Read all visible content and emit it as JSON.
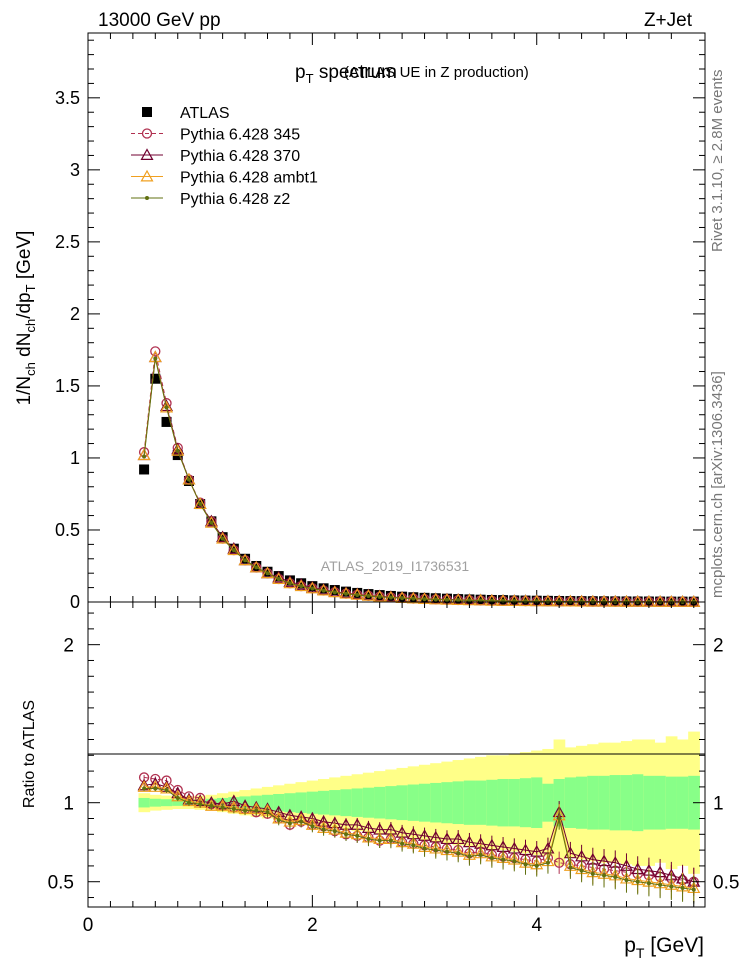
{
  "header": {
    "left": "13000 GeV pp",
    "right": "Z+Jet"
  },
  "side_labels": {
    "rivet": "Rivet 3.1.10, ≥ 2.8M events",
    "mcplots": "mcplots.cern.ch [arXiv:1306.3436]"
  },
  "chart_data": [
    {
      "type": "scatter",
      "title": "p_T spectrum",
      "title_main": "p",
      "title_sub": "T",
      "title_rest": " spectrum",
      "subtitle": "(ATLAS UE in Z production)",
      "ylabel": "1/N_ch dN_ch/dp_T [GeV]",
      "watermark": "ATLAS_2019_I1736531",
      "xlim": [
        0,
        5.5
      ],
      "ylim": [
        0,
        3.95
      ],
      "yticks": [
        "0",
        "0.5",
        "1",
        "1.5",
        "2",
        "2.5",
        "3",
        "3.5"
      ],
      "x": [
        0.5,
        0.6,
        0.7,
        0.8,
        0.9,
        1.0,
        1.1,
        1.2,
        1.3,
        1.4,
        1.5,
        1.6,
        1.7,
        1.8,
        1.9,
        2.0,
        2.1,
        2.2,
        2.3,
        2.4,
        2.5,
        2.6,
        2.7,
        2.8,
        2.9,
        3.0,
        3.1,
        3.2,
        3.3,
        3.4,
        3.5,
        3.6,
        3.7,
        3.8,
        3.9,
        4.0,
        4.1,
        4.2,
        4.3,
        4.4,
        4.5,
        4.6,
        4.7,
        4.8,
        4.9,
        5.0,
        5.1,
        5.2,
        5.3,
        5.4
      ],
      "series": [
        {
          "name": "ATLAS",
          "color": "#000000",
          "marker": "square",
          "line": "none",
          "values": [
            0.92,
            1.55,
            1.25,
            1.02,
            0.84,
            0.68,
            0.56,
            0.45,
            0.37,
            0.3,
            0.25,
            0.21,
            0.18,
            0.15,
            0.13,
            0.11,
            0.095,
            0.083,
            0.072,
            0.063,
            0.055,
            0.048,
            0.042,
            0.037,
            0.033,
            0.029,
            0.026,
            0.023,
            0.02,
            0.018,
            0.016,
            0.014,
            0.013,
            0.011,
            0.01,
            0.009,
            0.008,
            0.007,
            0.0065,
            0.006,
            0.0055,
            0.005,
            0.0045,
            0.004,
            0.0037,
            0.0034,
            0.0031,
            0.0028,
            0.0026,
            0.0024
          ]
        },
        {
          "name": "Pythia 6.428 345",
          "color": "#b03050",
          "marker": "circle-open",
          "line": "dashed",
          "values": [
            1.04,
            1.74,
            1.38,
            1.07,
            0.85,
            0.69,
            0.56,
            0.44,
            0.36,
            0.29,
            0.24,
            0.2,
            0.16,
            0.13,
            0.11,
            0.095,
            0.08,
            0.068,
            0.058,
            0.05,
            0.043,
            0.037,
            0.032,
            0.028,
            0.024,
            0.021,
            0.018,
            0.016,
            0.014,
            0.012,
            0.011,
            0.009,
            0.008,
            0.007,
            0.006,
            0.005,
            0.0045,
            0.004,
            0.0035,
            0.003,
            0.0027,
            0.0024,
            0.0021,
            0.0019,
            0.0017,
            0.0015,
            0.0013,
            0.0012,
            0.0011,
            0.001
          ]
        },
        {
          "name": "Pythia 6.428 370",
          "color": "#700030",
          "marker": "triangle-open",
          "line": "solid",
          "values": [
            1.02,
            1.7,
            1.36,
            1.06,
            0.85,
            0.68,
            0.56,
            0.45,
            0.37,
            0.29,
            0.24,
            0.2,
            0.17,
            0.14,
            0.12,
            0.1,
            0.085,
            0.072,
            0.062,
            0.054,
            0.046,
            0.04,
            0.035,
            0.03,
            0.026,
            0.023,
            0.02,
            0.018,
            0.016,
            0.014,
            0.012,
            0.01,
            0.009,
            0.008,
            0.007,
            0.006,
            0.005,
            0.0045,
            0.004,
            0.0035,
            0.003,
            0.0027,
            0.0024,
            0.0021,
            0.0019,
            0.0017,
            0.0015,
            0.0013,
            0.0012,
            0.0011
          ]
        },
        {
          "name": "Pythia 6.428 ambt1",
          "color": "#f0a020",
          "marker": "triangle-open",
          "line": "solid",
          "values": [
            1.02,
            1.7,
            1.35,
            1.05,
            0.85,
            0.68,
            0.55,
            0.44,
            0.36,
            0.29,
            0.24,
            0.2,
            0.16,
            0.13,
            0.11,
            0.095,
            0.08,
            0.068,
            0.058,
            0.05,
            0.043,
            0.037,
            0.032,
            0.028,
            0.024,
            0.021,
            0.018,
            0.016,
            0.014,
            0.012,
            0.011,
            0.009,
            0.008,
            0.007,
            0.006,
            0.005,
            0.0045,
            0.004,
            0.0035,
            0.003,
            0.0027,
            0.0024,
            0.0021,
            0.0019,
            0.0017,
            0.0015,
            0.0013,
            0.0012,
            0.0011,
            0.001
          ]
        },
        {
          "name": "Pythia 6.428 z2",
          "color": "#607010",
          "marker": "dot",
          "line": "solid",
          "values": [
            1.01,
            1.69,
            1.35,
            1.05,
            0.85,
            0.68,
            0.55,
            0.44,
            0.36,
            0.29,
            0.24,
            0.2,
            0.16,
            0.13,
            0.11,
            0.094,
            0.079,
            0.067,
            0.057,
            0.049,
            0.042,
            0.036,
            0.031,
            0.027,
            0.023,
            0.02,
            0.017,
            0.015,
            0.013,
            0.011,
            0.01,
            0.0085,
            0.0075,
            0.0065,
            0.0056,
            0.0048,
            0.0042,
            0.0037,
            0.0032,
            0.0028,
            0.0025,
            0.0022,
            0.0019,
            0.0017,
            0.0015,
            0.0013,
            0.0012,
            0.0011,
            0.001,
            0.0009
          ]
        }
      ]
    },
    {
      "type": "line",
      "ylabel": "Ratio to ATLAS",
      "xlabel": "p_T [GeV]",
      "xlabel_main": "p",
      "xlabel_sub": "T",
      "xlabel_rest": " [GeV]",
      "xlim": [
        0,
        5.5
      ],
      "ylim": [
        0.34,
        2.27
      ],
      "xticks": [
        "0",
        "2",
        "4"
      ],
      "yticks": [
        "0.5",
        "1",
        "2"
      ],
      "x": [
        0.5,
        0.6,
        0.7,
        0.8,
        0.9,
        1.0,
        1.1,
        1.2,
        1.3,
        1.4,
        1.5,
        1.6,
        1.7,
        1.8,
        1.9,
        2.0,
        2.1,
        2.2,
        2.3,
        2.4,
        2.5,
        2.6,
        2.7,
        2.8,
        2.9,
        3.0,
        3.1,
        3.2,
        3.3,
        3.4,
        3.5,
        3.6,
        3.7,
        3.8,
        3.9,
        4.0,
        4.1,
        4.2,
        4.3,
        4.4,
        4.5,
        4.6,
        4.7,
        4.8,
        4.9,
        5.0,
        5.1,
        5.2,
        5.3,
        5.4
      ],
      "band_inner": [
        0.03,
        0.025,
        0.022,
        0.02,
        0.02,
        0.02,
        0.025,
        0.03,
        0.035,
        0.04,
        0.045,
        0.05,
        0.055,
        0.06,
        0.065,
        0.07,
        0.075,
        0.08,
        0.085,
        0.09,
        0.095,
        0.1,
        0.105,
        0.11,
        0.115,
        0.12,
        0.125,
        0.13,
        0.135,
        0.14,
        0.14,
        0.145,
        0.15,
        0.15,
        0.155,
        0.16,
        0.12,
        0.15,
        0.16,
        0.165,
        0.17,
        0.17,
        0.175,
        0.175,
        0.18,
        0.17,
        0.17,
        0.165,
        0.165,
        0.17
      ],
      "band_outer": [
        0.06,
        0.05,
        0.045,
        0.04,
        0.04,
        0.045,
        0.05,
        0.06,
        0.07,
        0.08,
        0.09,
        0.1,
        0.11,
        0.12,
        0.13,
        0.14,
        0.15,
        0.16,
        0.17,
        0.18,
        0.19,
        0.2,
        0.21,
        0.22,
        0.23,
        0.24,
        0.25,
        0.26,
        0.27,
        0.28,
        0.29,
        0.3,
        0.3,
        0.31,
        0.32,
        0.33,
        0.34,
        0.4,
        0.35,
        0.36,
        0.37,
        0.38,
        0.38,
        0.39,
        0.4,
        0.4,
        0.38,
        0.42,
        0.4,
        0.45
      ],
      "series": [
        {
          "name": "Pythia 6.428 345",
          "color": "#b03050",
          "values": [
            1.16,
            1.15,
            1.14,
            1.08,
            1.04,
            1.03,
            0.99,
            0.98,
            0.97,
            0.96,
            0.94,
            0.93,
            0.9,
            0.86,
            0.88,
            0.86,
            0.85,
            0.82,
            0.8,
            0.79,
            0.78,
            0.76,
            0.77,
            0.75,
            0.74,
            0.73,
            0.72,
            0.71,
            0.7,
            0.68,
            0.69,
            0.67,
            0.66,
            0.65,
            0.64,
            0.63,
            0.65,
            0.62,
            0.61,
            0.6,
            0.59,
            0.58,
            0.57,
            0.56,
            0.55,
            0.54,
            0.53,
            0.52,
            0.51,
            0.5
          ]
        },
        {
          "name": "Pythia 6.428 370",
          "color": "#700030",
          "values": [
            1.11,
            1.12,
            1.1,
            1.06,
            1.02,
            1.01,
            1.0,
            0.99,
            1.01,
            0.98,
            0.97,
            0.96,
            0.94,
            0.92,
            0.91,
            0.9,
            0.88,
            0.87,
            0.86,
            0.86,
            0.84,
            0.83,
            0.83,
            0.81,
            0.8,
            0.79,
            0.78,
            0.77,
            0.77,
            0.75,
            0.74,
            0.73,
            0.72,
            0.71,
            0.7,
            0.69,
            0.71,
            0.94,
            0.68,
            0.66,
            0.64,
            0.63,
            0.62,
            0.6,
            0.58,
            0.57,
            0.56,
            0.54,
            0.52,
            0.5
          ]
        },
        {
          "name": "Pythia 6.428 ambt1",
          "color": "#f0a020",
          "values": [
            1.1,
            1.1,
            1.09,
            1.04,
            1.01,
            1.0,
            0.98,
            0.98,
            0.97,
            0.96,
            0.96,
            0.95,
            0.9,
            0.88,
            0.89,
            0.86,
            0.84,
            0.83,
            0.81,
            0.8,
            0.78,
            0.77,
            0.77,
            0.75,
            0.74,
            0.72,
            0.71,
            0.7,
            0.69,
            0.67,
            0.68,
            0.66,
            0.65,
            0.64,
            0.62,
            0.61,
            0.63,
            0.92,
            0.6,
            0.58,
            0.56,
            0.55,
            0.54,
            0.52,
            0.51,
            0.5,
            0.49,
            0.48,
            0.47,
            0.46
          ]
        },
        {
          "name": "Pythia 6.428 z2",
          "color": "#607010",
          "values": [
            1.09,
            1.09,
            1.08,
            1.03,
            1.0,
            0.99,
            0.98,
            0.97,
            0.96,
            0.95,
            0.95,
            0.94,
            0.89,
            0.87,
            0.88,
            0.85,
            0.83,
            0.82,
            0.8,
            0.79,
            0.77,
            0.76,
            0.76,
            0.74,
            0.73,
            0.71,
            0.7,
            0.69,
            0.68,
            0.66,
            0.67,
            0.65,
            0.64,
            0.63,
            0.61,
            0.6,
            0.62,
            0.9,
            0.59,
            0.57,
            0.55,
            0.54,
            0.53,
            0.51,
            0.5,
            0.49,
            0.48,
            0.47,
            0.46,
            0.45
          ]
        }
      ]
    }
  ]
}
